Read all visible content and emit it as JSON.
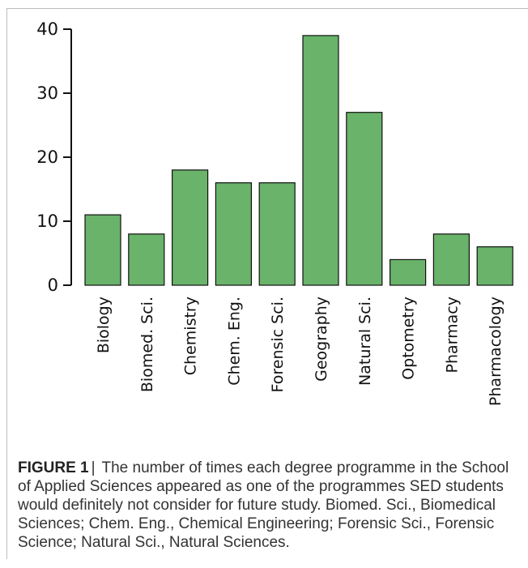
{
  "chart_data": {
    "type": "bar",
    "categories": [
      "Biology",
      "Biomed. Sci.",
      "Chemistry",
      "Chem. Eng.",
      "Forensic Sci.",
      "Geography",
      "Natural Sci.",
      "Optometry",
      "Pharmacy",
      "Pharmacology"
    ],
    "values": [
      11,
      8,
      18,
      16,
      16,
      39,
      27,
      4,
      8,
      6
    ],
    "title": "",
    "xlabel": "",
    "ylabel": "",
    "ylim": [
      0,
      40
    ],
    "yticks": [
      0,
      10,
      20,
      30,
      40
    ],
    "grid": false,
    "bar_color": "#6ab36a",
    "bar_edge_color": "#111111"
  },
  "caption": {
    "label": "FIGURE 1",
    "separator": "|",
    "text": "The number of times each degree programme in the School of Applied Sciences appeared as one of the programmes SED students would definitely not consider for future study. Biomed. Sci., Biomedical Sciences; Chem. Eng., Chemical Engineering; Forensic Sci., Forensic Science; Natural Sci., Natural Sciences."
  }
}
